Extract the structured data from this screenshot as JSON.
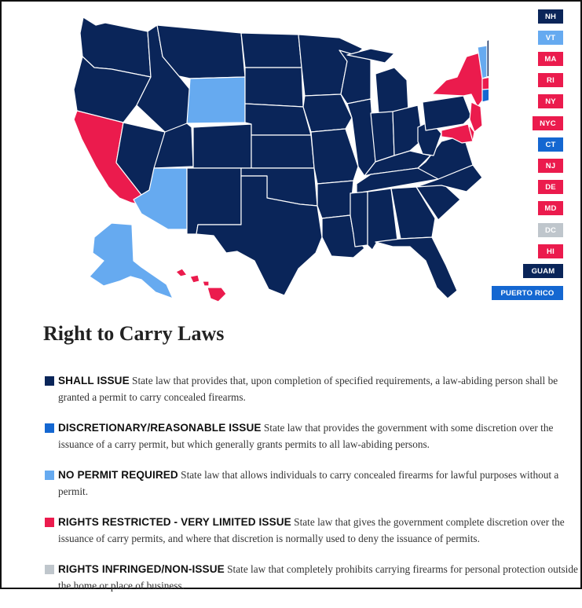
{
  "page": {
    "title": "Right to Carry Laws"
  },
  "colors": {
    "shall_issue": "#0a2559",
    "discretionary": "#1467d1",
    "no_permit": "#66aaf0",
    "restricted": "#eb1b4d",
    "infringed": "#bfc6cc"
  },
  "map": {
    "state_categories": {
      "WA": "shall_issue",
      "OR": "shall_issue",
      "CA": "restricted",
      "ID": "shall_issue",
      "NV": "shall_issue",
      "MT": "shall_issue",
      "WY": "no_permit",
      "UT": "shall_issue",
      "AZ": "no_permit",
      "CO": "shall_issue",
      "NM": "shall_issue",
      "ND": "shall_issue",
      "SD": "shall_issue",
      "NE": "shall_issue",
      "KS": "shall_issue",
      "OK": "shall_issue",
      "TX": "shall_issue",
      "MN": "shall_issue",
      "IA": "shall_issue",
      "MO": "shall_issue",
      "AR": "shall_issue",
      "LA": "shall_issue",
      "WI": "shall_issue",
      "IL": "shall_issue",
      "MS": "shall_issue",
      "MI": "shall_issue",
      "IN": "shall_issue",
      "KY": "shall_issue",
      "TN": "shall_issue",
      "AL": "shall_issue",
      "OH": "shall_issue",
      "WV": "shall_issue",
      "GA": "shall_issue",
      "FL": "shall_issue",
      "SC": "shall_issue",
      "NC": "shall_issue",
      "VA": "shall_issue",
      "PA": "shall_issue",
      "NY": "restricted",
      "ME": "shall_issue",
      "NH": "shall_issue",
      "VT": "no_permit",
      "MA": "restricted",
      "CT": "discretionary",
      "RI": "restricted",
      "NJ": "restricted",
      "DE": "restricted",
      "MD": "restricted",
      "AK": "no_permit",
      "HI": "restricted"
    }
  },
  "badges": [
    {
      "label": "NH",
      "category": "shall_issue"
    },
    {
      "label": "VT",
      "category": "no_permit"
    },
    {
      "label": "MA",
      "category": "restricted"
    },
    {
      "label": "RI",
      "category": "restricted"
    },
    {
      "label": "NY",
      "category": "restricted"
    },
    {
      "label": "NYC",
      "category": "restricted"
    },
    {
      "label": "CT",
      "category": "discretionary"
    },
    {
      "label": "NJ",
      "category": "restricted"
    },
    {
      "label": "DE",
      "category": "restricted"
    },
    {
      "label": "MD",
      "category": "restricted"
    },
    {
      "label": "DC",
      "category": "infringed"
    },
    {
      "label": "HI",
      "category": "restricted"
    },
    {
      "label": "GUAM",
      "category": "shall_issue"
    },
    {
      "label": "PUERTO RICO",
      "category": "discretionary"
    }
  ],
  "legend": [
    {
      "key": "shall_issue",
      "name": "SHALL ISSUE",
      "desc": " State law that provides that, upon completion of specified requirements, a law-abiding person shall be granted a permit to carry concealed firearms."
    },
    {
      "key": "discretionary",
      "name": "DISCRETIONARY/REASONABLE ISSUE",
      "desc": " State law that provides the government with some discretion over the issuance of a carry permit, but which generally grants permits to all law-abiding persons."
    },
    {
      "key": "no_permit",
      "name": "NO PERMIT REQUIRED",
      "desc": " State law that allows individuals to carry concealed firearms for lawful purposes without a permit."
    },
    {
      "key": "restricted",
      "name": "RIGHTS RESTRICTED - VERY LIMITED ISSUE",
      "desc": " State law that gives the government complete discretion over the issuance of carry permits, and where that discretion is normally used to deny the issuance of permits."
    },
    {
      "key": "infringed",
      "name": "RIGHTS INFRINGED/NON-ISSUE",
      "desc": " State law that completely prohibits carrying firearms for personal protection outside the home or place of business."
    }
  ]
}
